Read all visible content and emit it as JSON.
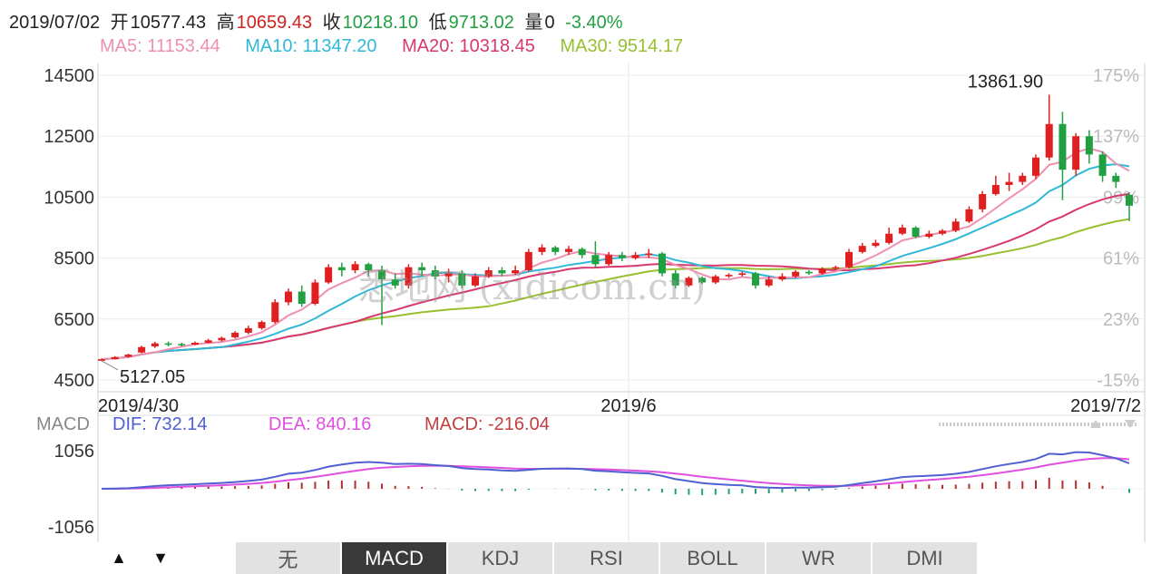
{
  "header": {
    "date": "2019/07/02",
    "open_label": "开",
    "open": "10577.43",
    "high_label": "高",
    "high": "10659.43",
    "close_label": "收",
    "close": "10218.10",
    "low_label": "低",
    "low": "9713.02",
    "volume_label": "量",
    "volume": "0",
    "change": "-3.40%"
  },
  "ma_legend": {
    "ma5": "MA5: 11153.44",
    "ma10": "MA10: 11347.20",
    "ma20": "MA20: 10318.45",
    "ma30": "MA30: 9514.17"
  },
  "macd_legend": {
    "title": "MACD",
    "dif": "DIF: 732.14",
    "dea": "DEA: 840.16",
    "macd": "MACD: -216.04"
  },
  "watermark": "悉地网 (xidicom.cn)",
  "tabs": [
    "无",
    "MACD",
    "KDJ",
    "RSI",
    "BOLL",
    "WR",
    "DMI"
  ],
  "active_tab": "MACD",
  "nav_buttons": {
    "up": "▲",
    "down": "▼"
  },
  "colors": {
    "up": "#e02020",
    "down": "#20a040",
    "ma5": "#f090b0",
    "ma10": "#30b8d8",
    "ma20": "#d83870",
    "ma30": "#98c030",
    "dif": "#5060d0",
    "dea": "#e050e0",
    "macd_label": "#c04040"
  },
  "chart_data": [
    {
      "type": "candlestick",
      "x_tick_labels": [
        "2019/4/30",
        "2019/6",
        "2019/7/2"
      ],
      "y_ticks": [
        4500,
        6500,
        8500,
        10500,
        12500,
        14500
      ],
      "ylim": [
        4500,
        14500
      ],
      "right_axis_ticks": [
        "175%",
        "137%",
        "99%",
        "61%",
        "23%",
        "-15%"
      ],
      "annotations": {
        "max_label": "13861.90",
        "min_label": "5127.05"
      },
      "candles": [
        [
          5130,
          5180,
          5127.05,
          5200
        ],
        [
          5180,
          5250,
          5170,
          5280
        ],
        [
          5260,
          5330,
          5240,
          5360
        ],
        [
          5400,
          5580,
          5380,
          5620
        ],
        [
          5600,
          5700,
          5550,
          5750
        ],
        [
          5700,
          5680,
          5600,
          5760
        ],
        [
          5680,
          5650,
          5600,
          5720
        ],
        [
          5660,
          5720,
          5640,
          5760
        ],
        [
          5720,
          5800,
          5700,
          5850
        ],
        [
          5800,
          5880,
          5760,
          5920
        ],
        [
          5900,
          6050,
          5860,
          6100
        ],
        [
          6050,
          6200,
          6000,
          6280
        ],
        [
          6200,
          6400,
          6150,
          6450
        ],
        [
          6400,
          7050,
          6350,
          7150
        ],
        [
          7050,
          7400,
          6950,
          7500
        ],
        [
          7400,
          7000,
          6900,
          7600
        ],
        [
          7000,
          7700,
          6950,
          7800
        ],
        [
          7700,
          8200,
          7650,
          8300
        ],
        [
          8200,
          8100,
          7900,
          8350
        ],
        [
          8100,
          8300,
          8000,
          8400
        ],
        [
          8300,
          8100,
          7900,
          8350
        ],
        [
          8100,
          7800,
          6300,
          8250
        ],
        [
          7800,
          7600,
          7500,
          8000
        ],
        [
          7600,
          8200,
          7500,
          8300
        ],
        [
          8200,
          8100,
          7900,
          8350
        ],
        [
          8100,
          7900,
          7800,
          8250
        ],
        [
          7900,
          8000,
          7700,
          8150
        ],
        [
          8000,
          7600,
          7500,
          8100
        ],
        [
          7600,
          7900,
          7550,
          8000
        ],
        [
          7900,
          8100,
          7850,
          8200
        ],
        [
          8100,
          8000,
          7900,
          8200
        ],
        [
          8000,
          8100,
          7950,
          8250
        ],
        [
          8100,
          8700,
          8050,
          8800
        ],
        [
          8700,
          8850,
          8600,
          8950
        ],
        [
          8850,
          8700,
          8600,
          8900
        ],
        [
          8700,
          8800,
          8600,
          8900
        ],
        [
          8800,
          8600,
          8500,
          8850
        ],
        [
          8600,
          8300,
          8200,
          9050
        ],
        [
          8300,
          8600,
          8250,
          8700
        ],
        [
          8600,
          8500,
          8400,
          8700
        ],
        [
          8500,
          8600,
          8450,
          8700
        ],
        [
          8600,
          8650,
          8500,
          8800
        ],
        [
          8650,
          8000,
          7900,
          8700
        ],
        [
          8000,
          7600,
          7500,
          8100
        ],
        [
          7600,
          7850,
          7550,
          7900
        ],
        [
          7850,
          7700,
          7650,
          7900
        ],
        [
          7700,
          7900,
          7650,
          7950
        ],
        [
          7900,
          7950,
          7850,
          8000
        ],
        [
          7950,
          8000,
          7900,
          8050
        ],
        [
          8000,
          7600,
          7500,
          8050
        ],
        [
          7600,
          7800,
          7550,
          7900
        ],
        [
          7800,
          7900,
          7750,
          8000
        ],
        [
          7900,
          8050,
          7850,
          8100
        ],
        [
          8050,
          8000,
          7950,
          8100
        ],
        [
          8000,
          8150,
          7950,
          8200
        ],
        [
          8150,
          8200,
          8100,
          8250
        ],
        [
          8200,
          8700,
          8150,
          8800
        ],
        [
          8700,
          8900,
          8650,
          9000
        ],
        [
          8900,
          9000,
          8850,
          9100
        ],
        [
          9000,
          9300,
          8950,
          9500
        ],
        [
          9300,
          9500,
          9250,
          9600
        ],
        [
          9500,
          9200,
          9150,
          9550
        ],
        [
          9200,
          9300,
          9150,
          9400
        ],
        [
          9300,
          9400,
          9250,
          9450
        ],
        [
          9400,
          9700,
          9350,
          9800
        ],
        [
          9700,
          10100,
          9650,
          10200
        ],
        [
          10100,
          10600,
          10000,
          10700
        ],
        [
          10600,
          10900,
          10550,
          11200
        ],
        [
          10900,
          11000,
          10700,
          11300
        ],
        [
          11000,
          11200,
          10900,
          11300
        ],
        [
          11200,
          11800,
          11100,
          11900
        ],
        [
          11800,
          12900,
          11700,
          13861.9
        ],
        [
          12900,
          11400,
          10400,
          13300
        ],
        [
          11400,
          12500,
          11200,
          12600
        ],
        [
          12500,
          11900,
          11600,
          12700
        ],
        [
          11900,
          11200,
          11000,
          12000
        ],
        [
          11200,
          11000,
          10800,
          11300
        ],
        [
          10577.43,
          10218.1,
          9713.02,
          10659.43
        ]
      ]
    },
    {
      "type": "bar",
      "name": "MACD",
      "y_tick_labels": [
        "1056",
        "-1056"
      ],
      "ylim": [
        -1056,
        1056
      ]
    }
  ]
}
